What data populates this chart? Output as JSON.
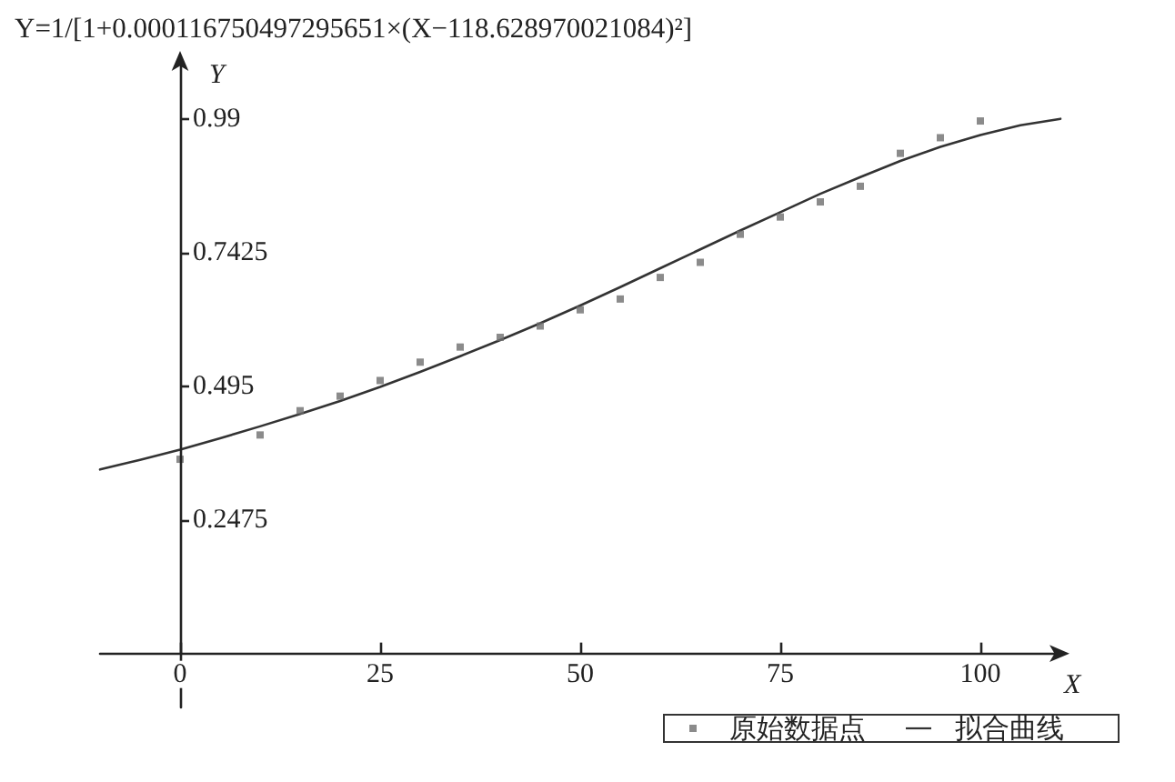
{
  "chart_data": {
    "type": "scatter",
    "title": "Y=1/[1+0.000116750497295651×(X−118.628970021084)²]",
    "xlabel": "X",
    "ylabel": "Y",
    "xlim": [
      -10,
      110
    ],
    "ylim": [
      -0.1,
      1.1
    ],
    "xticks": [
      0,
      25,
      50,
      75,
      100
    ],
    "yticks": [
      0.2475,
      0.495,
      0.7425,
      0.99
    ],
    "grid": false,
    "legend": "bottom right",
    "marker": "square",
    "series": [
      {
        "name": "原始数据点",
        "color": "#6e6e6e",
        "x": [
          0,
          10,
          15,
          20,
          25,
          30,
          35,
          40,
          45,
          50,
          55,
          60,
          65,
          70,
          75,
          80,
          85,
          90,
          95,
          100
        ],
        "values": [
          0.36,
          0.405,
          0.45,
          0.477,
          0.506,
          0.54,
          0.568,
          0.586,
          0.607,
          0.637,
          0.657,
          0.697,
          0.725,
          0.777,
          0.809,
          0.837,
          0.866,
          0.927,
          0.956,
          0.987
        ]
      },
      {
        "name": "拟合曲线",
        "type": "line",
        "color": "#333333",
        "marker": "none",
        "line_style": "solid",
        "x": [
          -10,
          -5,
          0,
          5,
          10,
          15,
          20,
          25,
          30,
          35,
          40,
          45,
          50,
          55,
          60,
          65,
          70,
          75,
          80,
          85,
          90,
          95,
          100,
          105,
          110
        ],
        "values": [
          0.341,
          0.359,
          0.378,
          0.399,
          0.421,
          0.444,
          0.468,
          0.494,
          0.522,
          0.551,
          0.581,
          0.612,
          0.645,
          0.679,
          0.714,
          0.749,
          0.784,
          0.818,
          0.852,
          0.883,
          0.913,
          0.939,
          0.961,
          0.979,
          0.991
        ]
      }
    ]
  }
}
